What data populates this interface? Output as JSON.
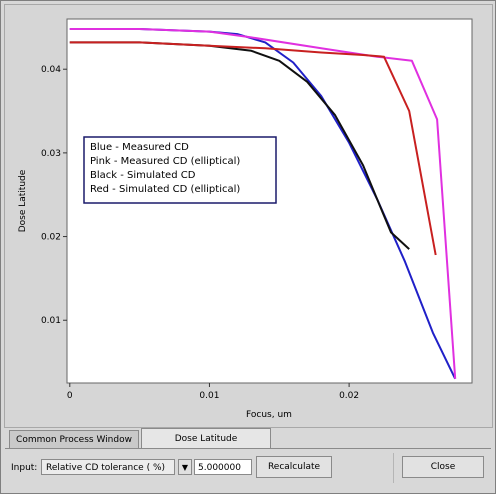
{
  "tabs": [
    {
      "label": "Common Process Window",
      "active": false
    },
    {
      "label": "Dose Latitude",
      "active": true
    }
  ],
  "controls": {
    "input_label": "Input:",
    "input_type_value": "Relative CD tolerance ( %)",
    "tolerance_value": "5.000000",
    "recalculate_label": "Recalculate",
    "close_label": "Close"
  },
  "chart_data": {
    "type": "line",
    "title": "",
    "xlabel": "Focus, um",
    "ylabel": "Dose Latitude",
    "xlim": [
      -0.0002,
      0.0288
    ],
    "ylim": [
      0.0025,
      0.046
    ],
    "x_ticks": [
      0,
      0.01,
      0.02
    ],
    "x_tick_labels": [
      "0",
      "0.01",
      "0.02"
    ],
    "y_ticks": [
      0.01,
      0.02,
      0.03,
      0.04
    ],
    "y_tick_labels": [
      "0.01",
      "0.02",
      "0.03",
      "0.04"
    ],
    "grid": false,
    "legend_placement": "center-left",
    "legend": [
      "Blue - Measured CD",
      "Pink - Measured CD (elliptical)",
      "Black - Simulated CD",
      "Red - Simulated CD (elliptical)"
    ],
    "series": [
      {
        "color": "#2020c8",
        "x": [
          0,
          0.005,
          0.01,
          0.012,
          0.014,
          0.016,
          0.018,
          0.02,
          0.022,
          0.024,
          0.026,
          0.0276
        ],
        "y": [
          0.0448,
          0.0448,
          0.0445,
          0.0442,
          0.0432,
          0.0408,
          0.0368,
          0.0312,
          0.0245,
          0.017,
          0.0085,
          0.003
        ]
      },
      {
        "color": "#e030e0",
        "x": [
          0,
          0.005,
          0.01,
          0.013,
          0.018,
          0.022,
          0.0245,
          0.0263,
          0.0276
        ],
        "y": [
          0.0448,
          0.0448,
          0.0445,
          0.0438,
          0.0425,
          0.0415,
          0.041,
          0.034,
          0.003
        ]
      },
      {
        "color": "#101010",
        "x": [
          0,
          0.005,
          0.01,
          0.013,
          0.015,
          0.017,
          0.019,
          0.021,
          0.022,
          0.023,
          0.0243
        ],
        "y": [
          0.0432,
          0.0432,
          0.0428,
          0.0422,
          0.041,
          0.0385,
          0.0345,
          0.0285,
          0.0245,
          0.0205,
          0.0185
        ]
      },
      {
        "color": "#c82020",
        "x": [
          0,
          0.005,
          0.01,
          0.014,
          0.018,
          0.021,
          0.0225,
          0.0243,
          0.0262
        ],
        "y": [
          0.0432,
          0.0432,
          0.0428,
          0.0425,
          0.042,
          0.0417,
          0.0415,
          0.035,
          0.0178
        ]
      }
    ]
  }
}
